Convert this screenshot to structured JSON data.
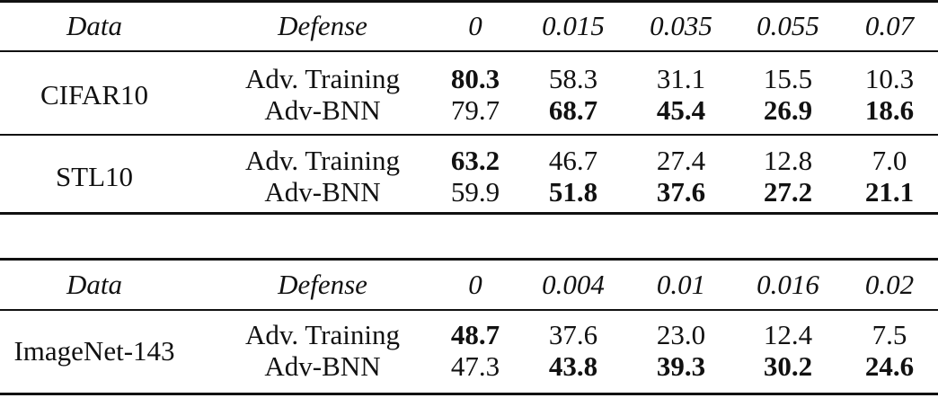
{
  "tables": [
    {
      "headers": [
        "Data",
        "Defense",
        "0",
        "0.015",
        "0.035",
        "0.055",
        "0.07"
      ],
      "groups": [
        {
          "dataset": "CIFAR10",
          "rows": [
            {
              "defense": "Adv. Training",
              "values": [
                "80.3",
                "58.3",
                "31.1",
                "15.5",
                "10.3"
              ],
              "bold": [
                true,
                false,
                false,
                false,
                false
              ]
            },
            {
              "defense": "Adv-BNN",
              "values": [
                "79.7",
                "68.7",
                "45.4",
                "26.9",
                "18.6"
              ],
              "bold": [
                false,
                true,
                true,
                true,
                true
              ]
            }
          ]
        },
        {
          "dataset": "STL10",
          "rows": [
            {
              "defense": "Adv. Training",
              "values": [
                "63.2",
                "46.7",
                "27.4",
                "12.8",
                "7.0"
              ],
              "bold": [
                true,
                false,
                false,
                false,
                false
              ]
            },
            {
              "defense": "Adv-BNN",
              "values": [
                "59.9",
                "51.8",
                "37.6",
                "27.2",
                "21.1"
              ],
              "bold": [
                false,
                true,
                true,
                true,
                true
              ]
            }
          ]
        }
      ]
    },
    {
      "headers": [
        "Data",
        "Defense",
        "0",
        "0.004",
        "0.01",
        "0.016",
        "0.02"
      ],
      "groups": [
        {
          "dataset": "ImageNet-143",
          "rows": [
            {
              "defense": "Adv. Training",
              "values": [
                "48.7",
                "37.6",
                "23.0",
                "12.4",
                "7.5"
              ],
              "bold": [
                true,
                false,
                false,
                false,
                false
              ]
            },
            {
              "defense": "Adv-BNN",
              "values": [
                "47.3",
                "43.8",
                "39.3",
                "30.2",
                "24.6"
              ],
              "bold": [
                false,
                true,
                true,
                true,
                true
              ]
            }
          ]
        }
      ]
    }
  ]
}
